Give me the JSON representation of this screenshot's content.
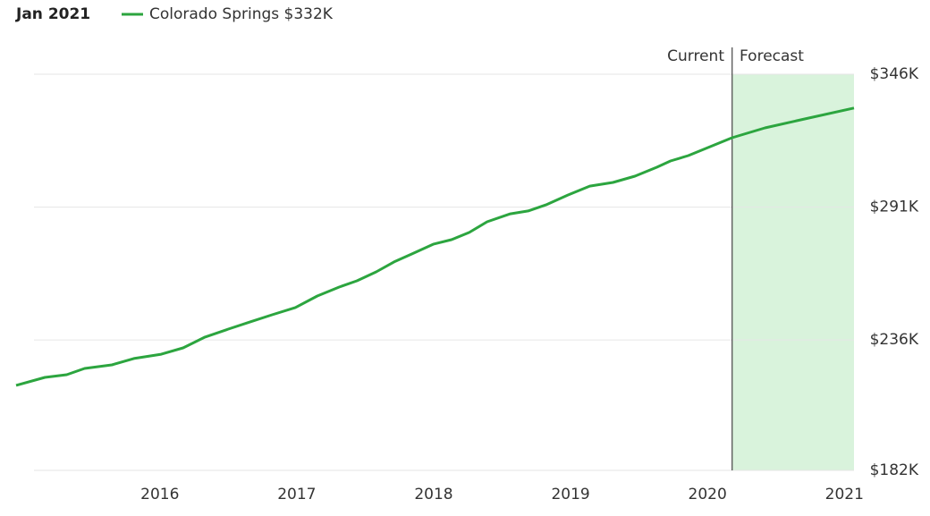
{
  "chart_data": {
    "type": "line",
    "date_label": "Jan 2021",
    "current_label": "Current",
    "forecast_label": "Forecast",
    "forecast_start": 2020.18,
    "forecast_color": "#d9f3dc",
    "x": [
      2014.95,
      2015.16,
      2015.32,
      2015.45,
      2015.65,
      2015.81,
      2016.01,
      2016.17,
      2016.33,
      2016.5,
      2016.66,
      2016.82,
      2016.99,
      2017.15,
      2017.31,
      2017.44,
      2017.58,
      2017.71,
      2017.84,
      2018.0,
      2018.13,
      2018.26,
      2018.39,
      2018.56,
      2018.69,
      2018.82,
      2018.98,
      2019.14,
      2019.31,
      2019.47,
      2019.63,
      2019.73,
      2019.86,
      2019.99,
      2020.18,
      2020.42,
      2020.71,
      2021.07
    ],
    "series": [
      {
        "name": "Colorado Springs $332K",
        "color": "#2ca53f",
        "values": [
          217200,
          220500,
          221600,
          224200,
          225700,
          228300,
          230100,
          232700,
          237200,
          240500,
          243500,
          246400,
          249400,
          254200,
          257900,
          260500,
          264200,
          268300,
          271600,
          275700,
          277500,
          280500,
          284900,
          288200,
          289400,
          291900,
          296000,
          299700,
          301200,
          303800,
          307500,
          310100,
          312300,
          315300,
          319700,
          323800,
          327500,
          332000
        ]
      }
    ],
    "xlim": [
      2014.95,
      2021.07
    ],
    "xticks": [
      2016,
      2017,
      2018,
      2019,
      2020,
      2021
    ],
    "ylim": [
      182000,
      346000
    ],
    "yticks": [
      {
        "value": 182000,
        "label": "$182K"
      },
      {
        "value": 236000,
        "label": "$236K"
      },
      {
        "value": 291000,
        "label": "$291K"
      },
      {
        "value": 346000,
        "label": "$346K"
      }
    ],
    "grid": true
  }
}
